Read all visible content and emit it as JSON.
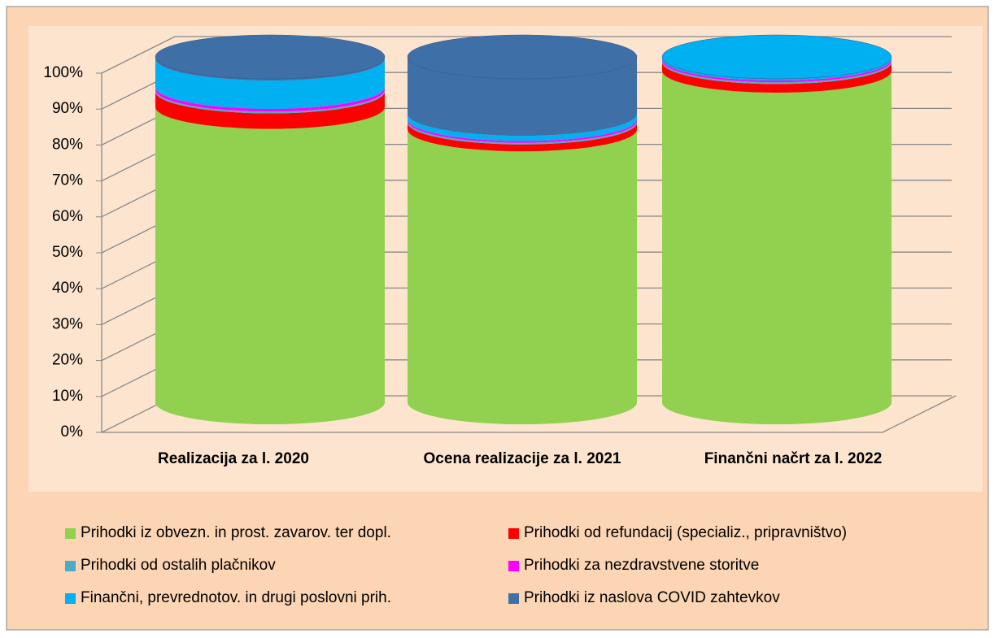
{
  "chart_data": {
    "type": "cylinder",
    "categories": [
      "Realizacija za l. 2020",
      "Ocena realizacije za l. 2021",
      "Finančni načrt za l. 2022"
    ],
    "series": [
      {
        "name": "Prihodki iz obvezn. in prost. zavarov. ter dopl.",
        "color": "#92d050",
        "values": [
          85.5,
          79,
          96
        ]
      },
      {
        "name": "Prihodki od refundacij (specializ., pripravništvo)",
        "color": "#ff0000",
        "values": [
          4.5,
          2,
          2.5
        ]
      },
      {
        "name": "Prihodki od ostalih plačnikov",
        "color": "#4bacc6",
        "values": [
          0.5,
          0.5,
          0.5
        ]
      },
      {
        "name": "Prihodki za nezdravstvene storitve",
        "color": "#ff00ff",
        "values": [
          0.8,
          0.5,
          0.5
        ]
      },
      {
        "name": "Finančni, prevrednotov. in drugi poslovni prih.",
        "color": "#00b0f0",
        "values": [
          8.2,
          1.5,
          0.5
        ]
      },
      {
        "name": "Prihodki iz naslova COVID zahtevkov",
        "color": "#3e6fa6",
        "values": [
          0.5,
          16.5,
          0
        ]
      }
    ],
    "ylim": [
      0,
      100
    ],
    "yticks": [
      {
        "value": 0,
        "label": "0%"
      },
      {
        "value": 10,
        "label": "10%"
      },
      {
        "value": 20,
        "label": "20%"
      },
      {
        "value": 30,
        "label": "30%"
      },
      {
        "value": 40,
        "label": "40%"
      },
      {
        "value": 50,
        "label": "50%"
      },
      {
        "value": 60,
        "label": "60%"
      },
      {
        "value": 70,
        "label": "70%"
      },
      {
        "value": 80,
        "label": "80%"
      },
      {
        "value": 90,
        "label": "90%"
      },
      {
        "value": 100,
        "label": "100%"
      }
    ],
    "grid": true
  }
}
